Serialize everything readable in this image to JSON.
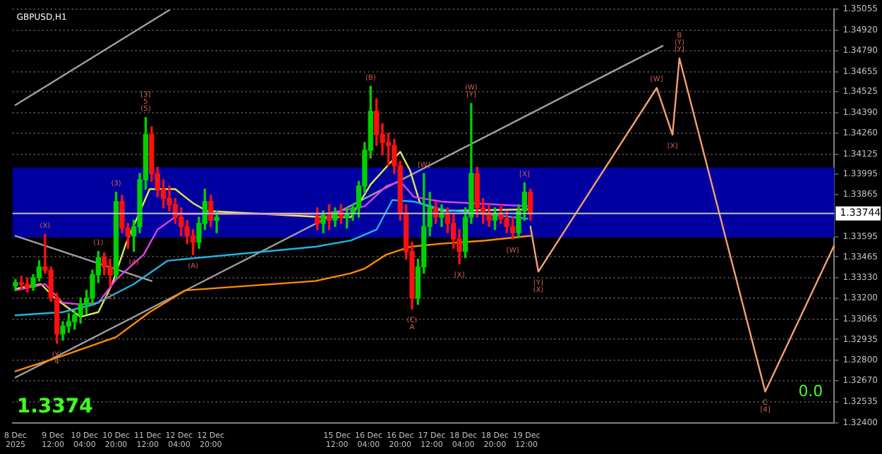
{
  "chart_data": {
    "type": "candlestick",
    "title": "GBPUSD,H1",
    "x": [
      "2025-12-08T17:00",
      "2025-12-08T20:00",
      "2025-12-08T23:00",
      "2025-12-09T02:00",
      "2025-12-09T05:00",
      "2025-12-09T08:00",
      "2025-12-09T11:00",
      "2025-12-09T14:00",
      "2025-12-09T17:00",
      "2025-12-09T20:00",
      "2025-12-09T23:00",
      "2025-12-10T02:00",
      "2025-12-10T05:00",
      "2025-12-10T08:00",
      "2025-12-10T11:00",
      "2025-12-10T14:00",
      "2025-12-10T17:00",
      "2025-12-10T20:00",
      "2025-12-10T23:00",
      "2025-12-11T02:00",
      "2025-12-11T05:00",
      "2025-12-11T08:00",
      "2025-12-11T11:00",
      "2025-12-11T14:00",
      "2025-12-11T17:00",
      "2025-12-11T20:00",
      "2025-12-11T23:00",
      "2025-12-12T02:00",
      "2025-12-12T05:00",
      "2025-12-12T08:00",
      "2025-12-12T11:00",
      "2025-12-12T14:00",
      "2025-12-12T17:00",
      "2025-12-12T20:00",
      "2025-12-12T23:00",
      "2025-12-15T02:00",
      "2025-12-15T05:00",
      "2025-12-15T08:00",
      "2025-12-15T11:00",
      "2025-12-15T14:00",
      "2025-12-15T17:00",
      "2025-12-15T20:00",
      "2025-12-15T23:00",
      "2025-12-16T02:00",
      "2025-12-16T05:00",
      "2025-12-16T08:00",
      "2025-12-16T11:00",
      "2025-12-16T14:00",
      "2025-12-16T17:00",
      "2025-12-16T20:00",
      "2025-12-16T23:00",
      "2025-12-17T02:00",
      "2025-12-17T05:00",
      "2025-12-17T08:00",
      "2025-12-17T11:00",
      "2025-12-17T14:00",
      "2025-12-17T17:00",
      "2025-12-17T20:00",
      "2025-12-17T23:00",
      "2025-12-18T02:00",
      "2025-12-18T05:00",
      "2025-12-18T08:00",
      "2025-12-18T11:00",
      "2025-12-18T14:00",
      "2025-12-18T17:00",
      "2025-12-18T20:00",
      "2025-12-18T23:00",
      "2025-12-19T02:00",
      "2025-12-19T05:00",
      "2025-12-19T08:00",
      "2025-12-19T11:00",
      "2025-12-19T14:00"
    ],
    "ohlc": [
      [
        1.3328,
        1.3332,
        1.3325,
        1.333
      ],
      [
        1.333,
        1.3334,
        1.3326,
        1.3329
      ],
      [
        1.3329,
        1.3333,
        1.3324,
        1.3327
      ],
      [
        1.3327,
        1.3335,
        1.3325,
        1.3333
      ],
      [
        1.3333,
        1.3344,
        1.3331,
        1.334
      ],
      [
        1.334,
        1.3361,
        1.3336,
        1.3338
      ],
      [
        1.3338,
        1.334,
        1.3318,
        1.332
      ],
      [
        1.332,
        1.3323,
        1.3291,
        1.3297
      ],
      [
        1.3297,
        1.3305,
        1.3293,
        1.3302
      ],
      [
        1.3302,
        1.331,
        1.3298,
        1.3305
      ],
      [
        1.3305,
        1.3312,
        1.33,
        1.3309
      ],
      [
        1.3309,
        1.332,
        1.3304,
        1.3316
      ],
      [
        1.3316,
        1.3325,
        1.331,
        1.332
      ],
      [
        1.332,
        1.3338,
        1.3316,
        1.3335
      ],
      [
        1.3335,
        1.335,
        1.333,
        1.3346
      ],
      [
        1.3346,
        1.3349,
        1.3335,
        1.334
      ],
      [
        1.334,
        1.3345,
        1.3328,
        1.3335
      ],
      [
        1.3335,
        1.3388,
        1.3333,
        1.3382
      ],
      [
        1.3382,
        1.3386,
        1.3362,
        1.3365
      ],
      [
        1.3365,
        1.3368,
        1.3352,
        1.336
      ],
      [
        1.336,
        1.337,
        1.335,
        1.3366
      ],
      [
        1.3366,
        1.34,
        1.3362,
        1.3396
      ],
      [
        1.3396,
        1.3436,
        1.339,
        1.3425
      ],
      [
        1.3425,
        1.343,
        1.3395,
        1.34
      ],
      [
        1.34,
        1.3404,
        1.3385,
        1.339
      ],
      [
        1.339,
        1.3396,
        1.3378,
        1.3384
      ],
      [
        1.3384,
        1.3392,
        1.3376,
        1.338
      ],
      [
        1.338,
        1.3384,
        1.3368,
        1.3372
      ],
      [
        1.3372,
        1.3378,
        1.336,
        1.3366
      ],
      [
        1.3366,
        1.337,
        1.3355,
        1.336
      ],
      [
        1.336,
        1.3364,
        1.3348,
        1.3356
      ],
      [
        1.3356,
        1.3372,
        1.3352,
        1.3368
      ],
      [
        1.3368,
        1.339,
        1.3364,
        1.3382
      ],
      [
        1.3382,
        1.3386,
        1.3366,
        1.337
      ],
      [
        1.337,
        1.3376,
        1.3362,
        1.3372
      ],
      [
        1.3372,
        1.3378,
        1.3364,
        1.3368
      ],
      [
        1.3368,
        1.3376,
        1.3362,
        1.3373
      ],
      [
        1.3373,
        1.338,
        1.3364,
        1.337
      ],
      [
        1.337,
        1.3378,
        1.3366,
        1.3375
      ],
      [
        1.3375,
        1.338,
        1.3368,
        1.3372
      ],
      [
        1.3372,
        1.3378,
        1.3365,
        1.3374
      ],
      [
        1.3374,
        1.338,
        1.337,
        1.3378
      ],
      [
        1.3378,
        1.3395,
        1.3372,
        1.3392
      ],
      [
        1.3392,
        1.342,
        1.3388,
        1.3415
      ],
      [
        1.3415,
        1.3456,
        1.341,
        1.344
      ],
      [
        1.344,
        1.3448,
        1.3418,
        1.3425
      ],
      [
        1.3425,
        1.3432,
        1.3412,
        1.342
      ],
      [
        1.342,
        1.3426,
        1.3405,
        1.3418
      ],
      [
        1.3418,
        1.3422,
        1.34,
        1.3405
      ],
      [
        1.3405,
        1.3408,
        1.337,
        1.3375
      ],
      [
        1.3375,
        1.338,
        1.3345,
        1.335
      ],
      [
        1.335,
        1.3356,
        1.3313,
        1.332
      ],
      [
        1.332,
        1.3345,
        1.3316,
        1.334
      ],
      [
        1.334,
        1.34,
        1.3336,
        1.3366
      ],
      [
        1.3366,
        1.3388,
        1.336,
        1.3378
      ],
      [
        1.3378,
        1.3382,
        1.3368,
        1.3372
      ],
      [
        1.3372,
        1.338,
        1.3366,
        1.3374
      ],
      [
        1.3374,
        1.3378,
        1.3362,
        1.3368
      ],
      [
        1.3368,
        1.3374,
        1.3352,
        1.3358
      ],
      [
        1.3358,
        1.3364,
        1.3342,
        1.335
      ],
      [
        1.335,
        1.3378,
        1.3346,
        1.3372
      ],
      [
        1.3372,
        1.3445,
        1.3368,
        1.34
      ],
      [
        1.34,
        1.3404,
        1.3372,
        1.3378
      ],
      [
        1.3378,
        1.3384,
        1.3368,
        1.3374
      ],
      [
        1.3374,
        1.338,
        1.3366,
        1.337
      ],
      [
        1.337,
        1.3378,
        1.3364,
        1.3374
      ],
      [
        1.3374,
        1.338,
        1.3368,
        1.3371
      ],
      [
        1.3371,
        1.3376,
        1.3362,
        1.3366
      ],
      [
        1.3366,
        1.3372,
        1.3358,
        1.3362
      ],
      [
        1.3362,
        1.338,
        1.3359,
        1.3376
      ],
      [
        1.3376,
        1.3394,
        1.337,
        1.3388
      ],
      [
        1.3388,
        1.339,
        1.337,
        1.3374
      ]
    ],
    "series": [
      {
        "type": "line",
        "color": "#ff8c00",
        "x": [
          "2025-12-08T17:00",
          "2025-12-09T17:00",
          "2025-12-10T20:00",
          "2025-12-11T13:00",
          "2025-12-12T07:00",
          "2025-12-15T01:00",
          "2025-12-15T19:00",
          "2025-12-16T02:00",
          "2025-12-16T13:00",
          "2025-12-17T01:00",
          "2025-12-17T17:00",
          "2025-12-18T15:00",
          "2025-12-19T14:00"
        ],
        "values": [
          1.3273,
          1.3283,
          1.3295,
          1.3311,
          1.3325,
          1.3331,
          1.3336,
          1.3339,
          1.3348,
          1.3353,
          1.3355,
          1.3357,
          1.336
        ]
      },
      {
        "type": "line",
        "color": "#1eb4e6",
        "x": [
          "2025-12-08T17:00",
          "2025-12-09T17:00",
          "2025-12-10T09:00",
          "2025-12-11T05:00",
          "2025-12-11T22:00",
          "2025-12-15T01:00",
          "2025-12-15T19:00",
          "2025-12-16T08:00",
          "2025-12-16T16:00",
          "2025-12-17T03:00",
          "2025-12-17T17:00",
          "2025-12-19T12:30"
        ],
        "values": [
          1.3309,
          1.3311,
          1.3316,
          1.3329,
          1.3344,
          1.3353,
          1.3357,
          1.3364,
          1.3383,
          1.3382,
          1.3377,
          1.3371
        ]
      },
      {
        "type": "line",
        "color": "#e040e0",
        "x": [
          "2025-12-08T17:00",
          "2025-12-09T08:00",
          "2025-12-09T17:00",
          "2025-12-10T02:00",
          "2025-12-10T11:00",
          "2025-12-10T20:00",
          "2025-12-11T10:00",
          "2025-12-11T17:00",
          "2025-12-12T04:00",
          "2025-12-15T05:00",
          "2025-12-16T02:00",
          "2025-12-16T13:00",
          "2025-12-16T20:00",
          "2025-12-17T03:00",
          "2025-12-17T17:00",
          "2025-12-19T14:00"
        ],
        "values": [
          1.3325,
          1.3329,
          1.3317,
          1.3316,
          1.3317,
          1.3332,
          1.3348,
          1.3364,
          1.3374,
          1.3374,
          1.3379,
          1.3392,
          1.3395,
          1.3385,
          1.3382,
          1.3379
        ]
      },
      {
        "type": "line",
        "color": "#e8e84a",
        "x": [
          "2025-12-08T17:00",
          "2025-12-09T06:00",
          "2025-12-09T13:00",
          "2025-12-10T02:00",
          "2025-12-10T11:00",
          "2025-12-10T18:00",
          "2025-12-11T01:00",
          "2025-12-11T13:00",
          "2025-12-12T02:00",
          "2025-12-12T11:00",
          "2025-12-12T18:00",
          "2025-12-15T05:00",
          "2025-12-15T19:00",
          "2025-12-16T05:00",
          "2025-12-16T20:00",
          "2025-12-17T01:00",
          "2025-12-17T06:00",
          "2025-12-17T17:00",
          "2025-12-19T12:30"
        ],
        "values": [
          1.3326,
          1.3329,
          1.332,
          1.3308,
          1.3311,
          1.3329,
          1.3355,
          1.339,
          1.339,
          1.3381,
          1.3376,
          1.3372,
          1.3372,
          1.3393,
          1.3414,
          1.3402,
          1.3381,
          1.3376,
          1.3377
        ]
      },
      {
        "type": "line",
        "color": "#f4a070",
        "x": [
          "2025-12-19T14:00",
          "2025-12-19T18:00",
          "2025-12-22T06:00",
          "2025-12-22T14:00",
          "2025-12-22T17:30",
          "2025-12-24T13:00",
          "2025-12-26T00:00"
        ],
        "values": [
          1.3366,
          1.3337,
          1.3455,
          1.3425,
          1.3474,
          1.326,
          1.3354
        ]
      },
      {
        "type": "line",
        "color": "#a0a0a0",
        "x": [
          "2025-12-08T17:00",
          "2025-12-11T23:00"
        ],
        "values": [
          1.3444,
          1.3505
        ]
      },
      {
        "type": "line",
        "color": "#a0a0a0",
        "x": [
          "2025-12-08T17:00",
          "2025-12-22T09:00"
        ],
        "values": [
          1.3269,
          1.3482
        ]
      },
      {
        "type": "line",
        "color": "#a0a0a0",
        "x": [
          "2025-12-08T17:00",
          "2025-12-11T14:00"
        ],
        "values": [
          1.336,
          1.3331
        ]
      }
    ],
    "marker": "none",
    "line_style": "solid",
    "xlim": [
      "2025-12-08T15:30",
      "2025-12-26T00:00"
    ],
    "xticks": [
      {
        "value": "2025-12-08T17:00",
        "label": "8 Dec 2025"
      },
      {
        "value": "2025-12-09T12:00",
        "label": "9 Dec 12:00"
      },
      {
        "value": "2025-12-10T04:00",
        "label": "10 Dec 04:00"
      },
      {
        "value": "2025-12-10T20:00",
        "label": "10 Dec 20:00"
      },
      {
        "value": "2025-12-11T12:00",
        "label": "11 Dec 12:00"
      },
      {
        "value": "2025-12-12T04:00",
        "label": "12 Dec 04:00"
      },
      {
        "value": "2025-12-12T20:00",
        "label": "12 Dec 20:00"
      },
      {
        "value": "2025-12-15T12:00",
        "label": "15 Dec 12:00"
      },
      {
        "value": "2025-12-16T04:00",
        "label": "16 Dec 04:00"
      },
      {
        "value": "2025-12-16T20:00",
        "label": "16 Dec 20:00"
      },
      {
        "value": "2025-12-17T12:00",
        "label": "17 Dec 12:00"
      },
      {
        "value": "2025-12-18T04:00",
        "label": "18 Dec 04:00"
      },
      {
        "value": "2025-12-18T20:00",
        "label": "18 Dec 20:00"
      },
      {
        "value": "2025-12-19T12:00",
        "label": "19 Dec 12:00"
      }
    ],
    "ylim": [
      1.324,
      1.35055
    ],
    "yticks": [
      {
        "value": 1.324,
        "label": "1.32400"
      },
      {
        "value": 1.32535,
        "label": "1.32535"
      },
      {
        "value": 1.3267,
        "label": "1.32670"
      },
      {
        "value": 1.328,
        "label": "1.32800"
      },
      {
        "value": 1.32935,
        "label": "1.32935"
      },
      {
        "value": 1.33065,
        "label": "1.33065"
      },
      {
        "value": 1.332,
        "label": "1.33200"
      },
      {
        "value": 1.3333,
        "label": "1.33330"
      },
      {
        "value": 1.33465,
        "label": "1.33465"
      },
      {
        "value": 1.33595,
        "label": "1.33595"
      },
      {
        "value": 1.33865,
        "label": "1.33865"
      },
      {
        "value": 1.33995,
        "label": "1.33995"
      },
      {
        "value": 1.34125,
        "label": "1.34125"
      },
      {
        "value": 1.3426,
        "label": "1.34260"
      },
      {
        "value": 1.3439,
        "label": "1.34390"
      },
      {
        "value": 1.34525,
        "label": "1.34525"
      },
      {
        "value": 1.34655,
        "label": "1.34655"
      },
      {
        "value": 1.3479,
        "label": "1.34790"
      },
      {
        "value": 1.3492,
        "label": "1.34920"
      },
      {
        "value": 1.35055,
        "label": "1.35055"
      }
    ],
    "grid": "y",
    "bands": [
      {
        "axis": "y",
        "from": 1.3359,
        "to": 1.3404,
        "color": "#0000a0"
      }
    ],
    "ref_lines": [
      {
        "axis": "y",
        "value": 1.33744,
        "label": "1.33744",
        "color": "#c0c0c0"
      }
    ],
    "annotations": [
      "1.3374",
      "0.0",
      {
        "text": "(X)",
        "x": "2025-12-09T08:00",
        "y": 1.3361
      },
      {
        "text": "(Y)",
        "x": "2025-12-09T14:00",
        "y": 1.3291
      },
      {
        "text": "4",
        "x": "2025-12-09T14:00",
        "y": 1.3291
      },
      {
        "text": "(1)",
        "x": "2025-12-10T11:00",
        "y": 1.335
      },
      {
        "text": "(2)",
        "x": "2025-12-10T17:00",
        "y": 1.3328
      },
      {
        "text": "(3)",
        "x": "2025-12-10T20:00",
        "y": 1.3388
      },
      {
        "text": "(4)",
        "x": "2025-12-11T05:00",
        "y": 1.335
      },
      {
        "text": "(5)",
        "x": "2025-12-11T11:00",
        "y": 1.3436
      },
      {
        "text": "5",
        "x": "2025-12-11T11:00",
        "y": 1.3436
      },
      {
        "text": "[3]",
        "x": "2025-12-11T11:00",
        "y": 1.3436
      },
      {
        "text": "(A)",
        "x": "2025-12-12T11:00",
        "y": 1.3348
      },
      {
        "text": "(B)",
        "x": "2025-12-16T05:00",
        "y": 1.3456
      },
      {
        "text": "(C)",
        "x": "2025-12-17T02:00",
        "y": 1.3313
      },
      {
        "text": "A",
        "x": "2025-12-17T02:00",
        "y": 1.3313
      },
      {
        "text": "[W]",
        "x": "2025-12-17T08:00",
        "y": 1.34
      },
      {
        "text": "[X]",
        "x": "2025-12-18T02:00",
        "y": 1.3342
      },
      {
        "text": "[Y]",
        "x": "2025-12-18T08:00",
        "y": 1.3445
      },
      {
        "text": "(W)",
        "x": "2025-12-18T08:00",
        "y": 1.3445
      },
      {
        "text": "[W]",
        "x": "2025-12-19T05:00",
        "y": 1.3358
      },
      {
        "text": "[X]",
        "x": "2025-12-19T11:00",
        "y": 1.3394
      },
      {
        "text": "[Y]",
        "x": "2025-12-19T18:00",
        "y": 1.3337
      },
      {
        "text": "(X)",
        "x": "2025-12-19T18:00",
        "y": 1.3337
      },
      {
        "text": "[W]",
        "x": "2025-12-22T06:00",
        "y": 1.3455
      },
      {
        "text": "[X]",
        "x": "2025-12-22T14:00",
        "y": 1.3425
      },
      {
        "text": "[Y]",
        "x": "2025-12-22T17:30",
        "y": 1.3474
      },
      {
        "text": "(Y)",
        "x": "2025-12-22T17:30",
        "y": 1.3474
      },
      {
        "text": "B",
        "x": "2025-12-22T17:30",
        "y": 1.3474
      },
      {
        "text": "C",
        "x": "2025-12-24T13:00",
        "y": 1.326
      },
      {
        "text": "[4]",
        "x": "2025-12-24T13:00",
        "y": 1.326
      }
    ]
  }
}
